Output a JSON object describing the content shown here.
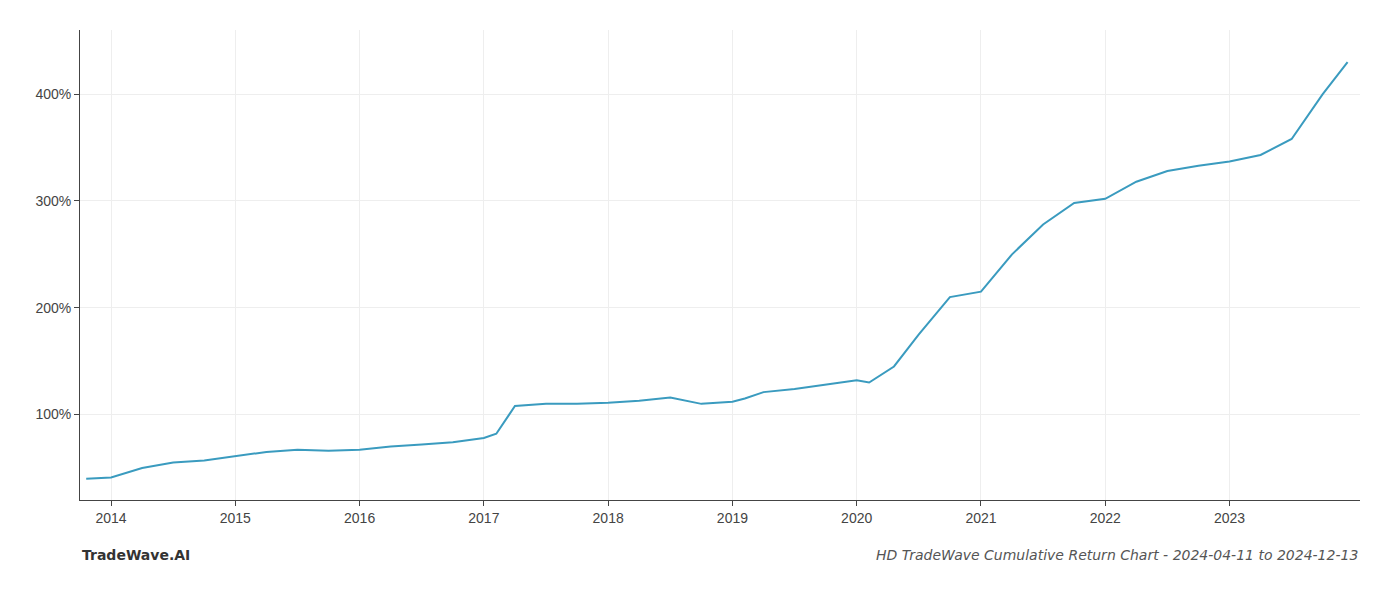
{
  "chart_data": {
    "type": "line",
    "title": "HD TradeWave Cumulative Return Chart - 2024-04-11 to 2024-12-13",
    "annotations": [
      "TradeWave.AI"
    ],
    "x": [
      2013.8,
      2014.0,
      2014.25,
      2014.5,
      2014.75,
      2015.0,
      2015.25,
      2015.5,
      2015.75,
      2016.0,
      2016.25,
      2016.5,
      2016.75,
      2017.0,
      2017.1,
      2017.25,
      2017.5,
      2017.75,
      2018.0,
      2018.25,
      2018.5,
      2018.75,
      2019.0,
      2019.1,
      2019.25,
      2019.5,
      2019.75,
      2020.0,
      2020.1,
      2020.3,
      2020.5,
      2020.75,
      2021.0,
      2021.25,
      2021.5,
      2021.75,
      2022.0,
      2022.25,
      2022.5,
      2022.75,
      2023.0,
      2023.25,
      2023.5,
      2023.75,
      2023.95
    ],
    "values": [
      40,
      41,
      50,
      55,
      57,
      61,
      65,
      67,
      66,
      67,
      70,
      72,
      74,
      78,
      82,
      108,
      110,
      110,
      111,
      113,
      116,
      110,
      112,
      115,
      121,
      124,
      128,
      132,
      130,
      145,
      175,
      210,
      215,
      250,
      278,
      298,
      302,
      318,
      328,
      333,
      337,
      343,
      358,
      400,
      430
    ],
    "color": "#3a9bbf",
    "xlim": [
      2013.75,
      2024.05
    ],
    "xticks": [
      2014,
      2015,
      2016,
      2017,
      2018,
      2019,
      2020,
      2021,
      2022,
      2023
    ],
    "ylim": [
      20,
      460
    ],
    "yticks": [
      {
        "value": 100,
        "label": "100%"
      },
      {
        "value": 200,
        "label": "200%"
      },
      {
        "value": 300,
        "label": "300%"
      },
      {
        "value": 400,
        "label": "400%"
      }
    ],
    "grid": true
  }
}
